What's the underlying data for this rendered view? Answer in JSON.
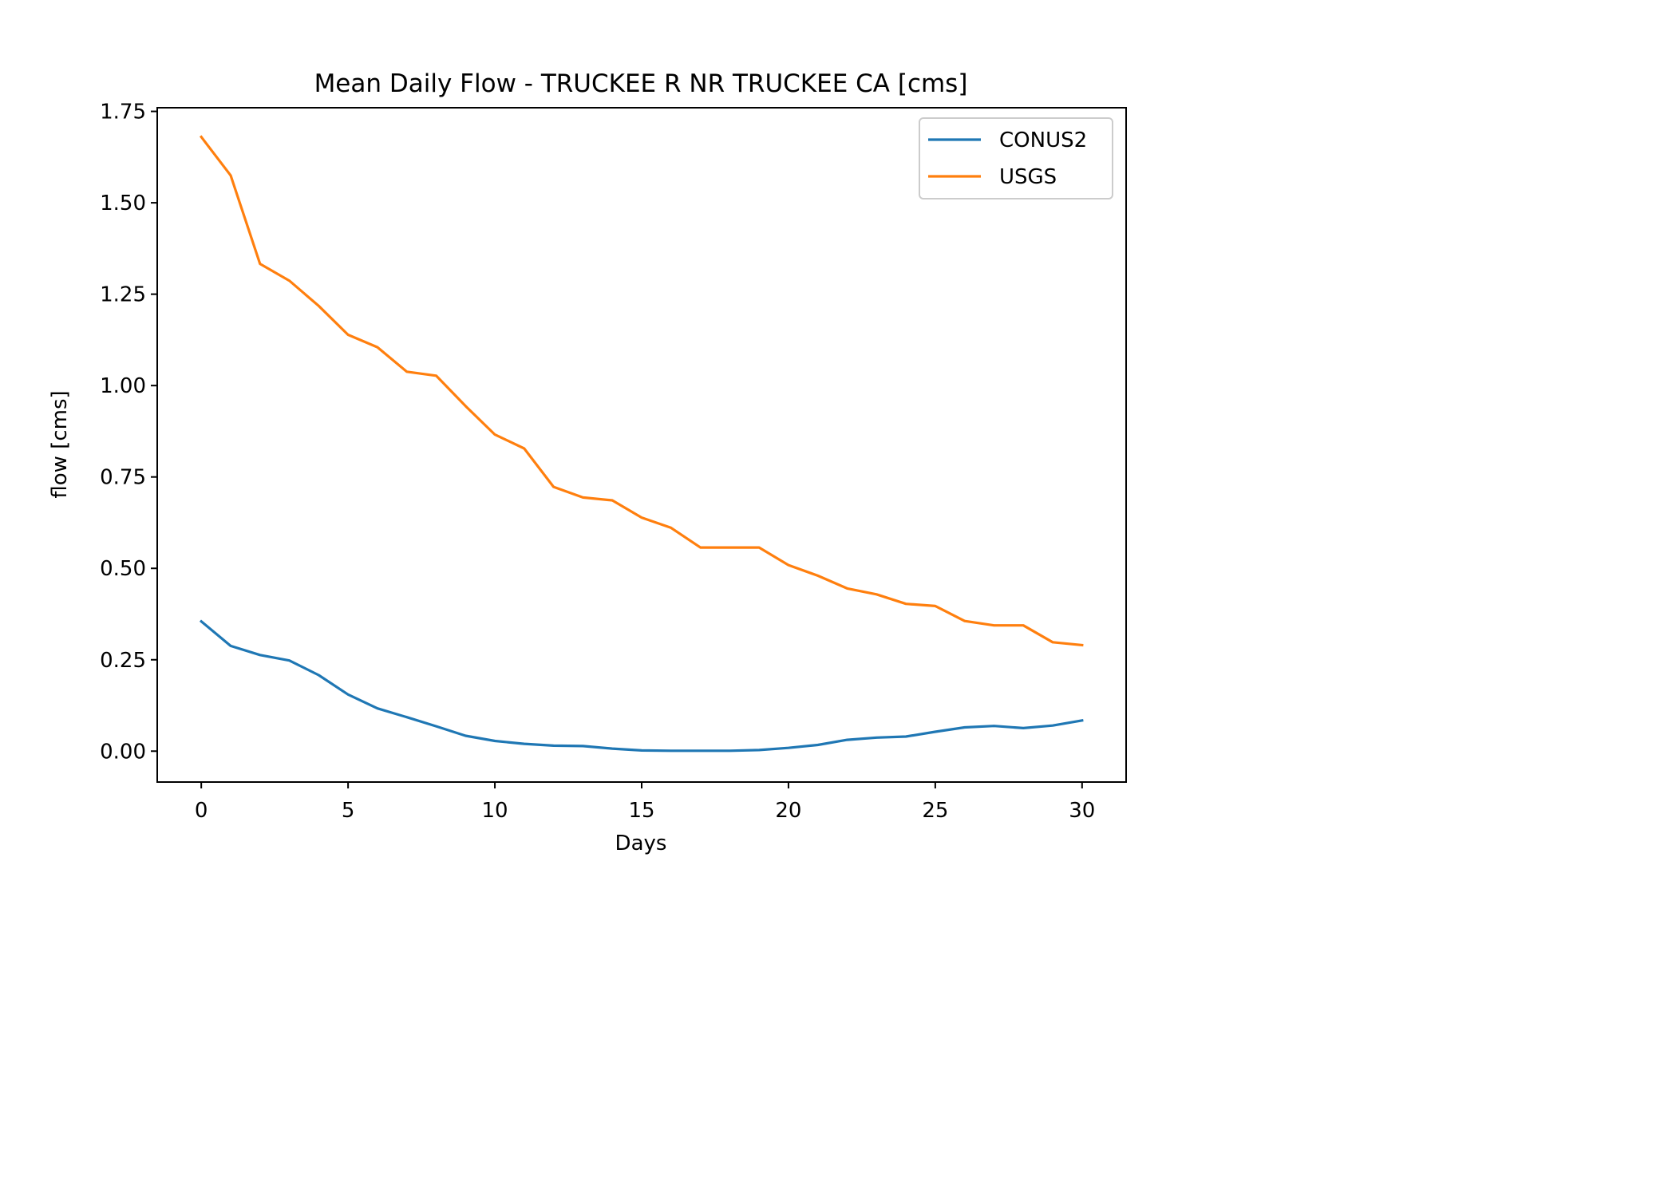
{
  "chart_data": {
    "type": "line",
    "title": "Mean Daily Flow - TRUCKEE R NR TRUCKEE CA [cms]",
    "xlabel": "Days",
    "ylabel": "flow [cms]",
    "xlim": [
      -1.5,
      31.5
    ],
    "ylim": [
      -0.0845,
      1.76
    ],
    "x_ticks": [
      0,
      5,
      10,
      15,
      20,
      25,
      30
    ],
    "x_tick_labels": [
      "0",
      "5",
      "10",
      "15",
      "20",
      "25",
      "30"
    ],
    "y_ticks": [
      0.0,
      0.25,
      0.5,
      0.75,
      1.0,
      1.25,
      1.5,
      1.75
    ],
    "y_tick_labels": [
      "0.00",
      "0.25",
      "0.50",
      "0.75",
      "1.00",
      "1.25",
      "1.50",
      "1.75"
    ],
    "grid": false,
    "legend_position": "top-right",
    "x": [
      0,
      1,
      2,
      3,
      4,
      5,
      6,
      7,
      8,
      9,
      10,
      11,
      12,
      13,
      14,
      15,
      16,
      17,
      18,
      19,
      20,
      21,
      22,
      23,
      24,
      25,
      26,
      27,
      28,
      29,
      30
    ],
    "series": [
      {
        "name": "CONUS2",
        "color": "#1f77b4",
        "values": [
          0.355,
          0.288,
          0.263,
          0.248,
          0.208,
          0.155,
          0.117,
          0.093,
          0.068,
          0.042,
          0.028,
          0.02,
          0.015,
          0.014,
          0.007,
          0.002,
          0.001,
          0.001,
          0.001,
          0.003,
          0.009,
          0.017,
          0.031,
          0.037,
          0.04,
          0.053,
          0.065,
          0.069,
          0.063,
          0.07,
          0.084
        ]
      },
      {
        "name": "USGS",
        "color": "#ff7f0e",
        "values": [
          1.68,
          1.575,
          1.333,
          1.287,
          1.218,
          1.139,
          1.105,
          1.038,
          1.027,
          0.944,
          0.866,
          0.828,
          0.723,
          0.694,
          0.686,
          0.639,
          0.611,
          0.557,
          0.557,
          0.557,
          0.509,
          0.48,
          0.445,
          0.429,
          0.403,
          0.397,
          0.356,
          0.344,
          0.344,
          0.298,
          0.29
        ]
      }
    ]
  }
}
